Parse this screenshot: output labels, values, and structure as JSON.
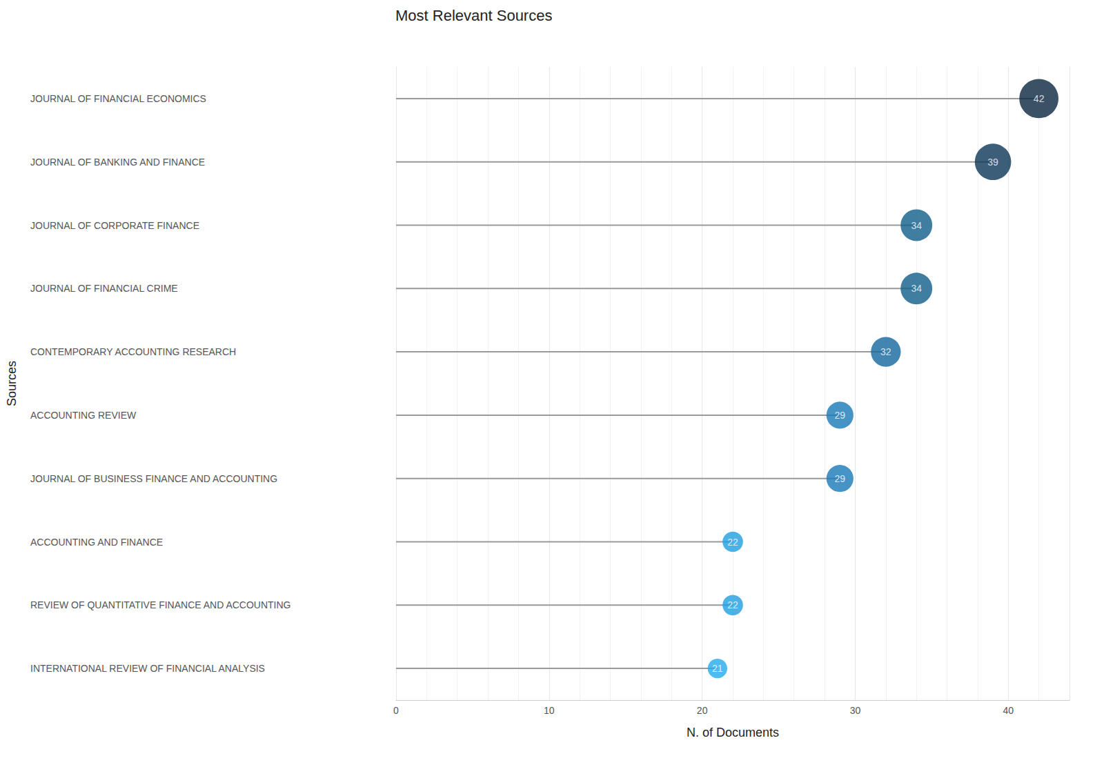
{
  "chart_data": {
    "type": "lollipop",
    "title": "Most Relevant Sources",
    "x_label": "N. of Documents",
    "y_label": "Sources",
    "categories": [
      "JOURNAL OF FINANCIAL ECONOMICS",
      "JOURNAL OF BANKING AND FINANCE",
      "JOURNAL OF CORPORATE FINANCE",
      "JOURNAL OF FINANCIAL CRIME",
      "CONTEMPORARY ACCOUNTING RESEARCH",
      "ACCOUNTING REVIEW",
      "JOURNAL OF BUSINESS FINANCE AND ACCOUNTING",
      "ACCOUNTING AND FINANCE",
      "REVIEW OF QUANTITATIVE FINANCE AND ACCOUNTING",
      "INTERNATIONAL REVIEW OF FINANCIAL ANALYSIS"
    ],
    "values": [
      42,
      39,
      34,
      34,
      32,
      29,
      29,
      22,
      22,
      21
    ],
    "colors": [
      "#0a2740",
      "#0c3656",
      "#0f5c8a",
      "#0f5c8a",
      "#12679c",
      "#1878b8",
      "#1878b8",
      "#1e9de0",
      "#1e9de0",
      "#22aaee"
    ],
    "xlim": [
      0,
      44
    ],
    "xticks": [
      0,
      10,
      20,
      30,
      40
    ],
    "orientation": "horizontal",
    "grid": true,
    "data_labels": true
  }
}
